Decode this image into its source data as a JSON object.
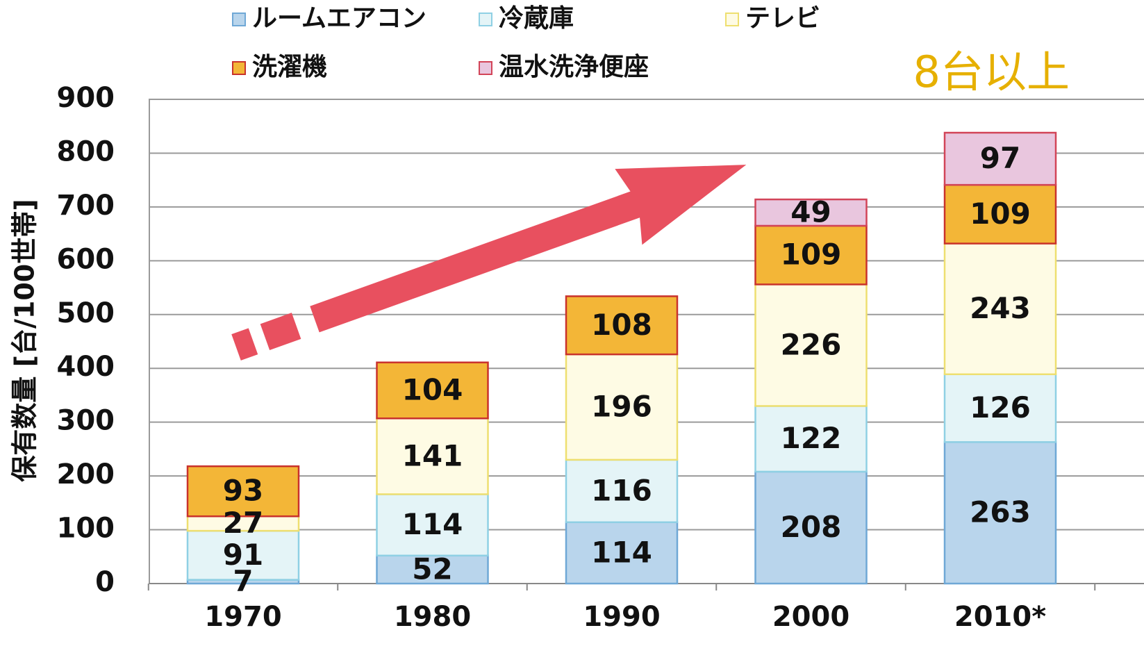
{
  "chart_data": {
    "type": "stacked_bar",
    "y_label": "保有数量 [台/100世帯]",
    "annotation": "8台以上",
    "categories": [
      "1970",
      "1980",
      "1990",
      "2000",
      "2010*"
    ],
    "series": [
      {
        "name": "ルームエアコン",
        "color": "#b9d5ec",
        "edge_color": "#6fa8d6",
        "values": [
          7,
          52,
          114,
          208,
          263
        ]
      },
      {
        "name": "冷蔵庫",
        "color": "#e4f4f7",
        "edge_color": "#8fd0e4",
        "values": [
          91,
          114,
          116,
          122,
          126
        ]
      },
      {
        "name": "テレビ",
        "color": "#fefbe4",
        "edge_color": "#eedf70",
        "values": [
          27,
          141,
          196,
          226,
          243
        ]
      },
      {
        "name": "洗濯機",
        "color": "#f3b637",
        "edge_color": "#c9322c",
        "values": [
          93,
          104,
          108,
          109,
          109
        ]
      },
      {
        "name": "温水洗浄便座",
        "color": "#e9c6de",
        "edge_color": "#d24458",
        "values": [
          null,
          null,
          null,
          49,
          97
        ]
      }
    ],
    "ylim": [
      0,
      900
    ],
    "yticks": [
      0,
      100,
      200,
      300,
      400,
      500,
      600,
      700,
      800,
      900
    ],
    "grid": true
  }
}
